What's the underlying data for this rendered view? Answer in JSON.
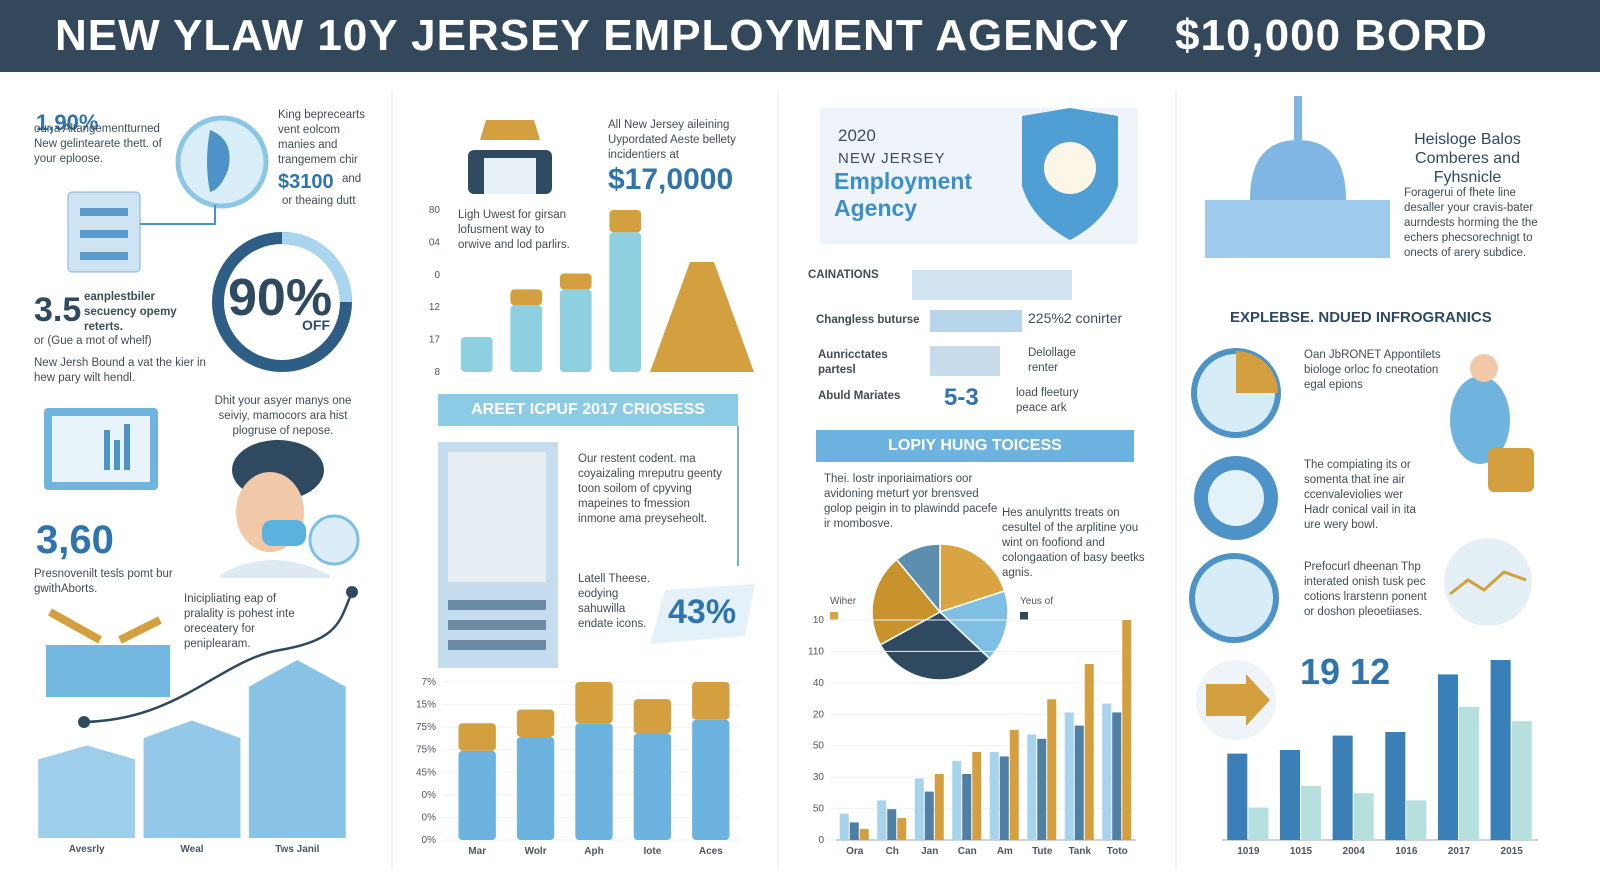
{
  "header": {
    "title": "NEW YLAW 10Y JERSEY EMPLOYMENT AGENCY",
    "badge": "$10,000 BORD"
  },
  "col1": {
    "stat1": "1,90%",
    "stat1_text": "our a Altangementturned New gelintearete thett. of your eploose.",
    "side_text": "King beprecearts vent eolcom manies and trangemem chir",
    "side_value": "$3100",
    "side_unit": "and",
    "side_note": "or theaing dutt",
    "stat2": "3.5",
    "stat2_text": "eanplestbiler secuency opemy reterts.",
    "stat2_note": "or (Gue a mot of whelf)",
    "stat2_body": "New Jersh Bound a vat the kier in hew pary wilt hendl.",
    "donut_value": "90%",
    "donut_unit": "OFF",
    "mid_text": "Dhit your asyer manys one seiviy, mamocors ara hist plogruse of nepose.",
    "stat3": "3,60",
    "stat3_text": "Presnovenilt tesls pomt bur gwithAborts.",
    "line_text": "Inicipliating eap of pralality is pohest inte oreceatery for peniplearam."
  },
  "col2": {
    "intro": "All New Jersey aileining Uypordated Aeste bellety incidentiers at",
    "amount": "$17,0000",
    "chart_text": "Ligh Uwest for girsan lofusment way to orwive and lod parlirs.",
    "banner": "AREET ICPUF 2017 CRIOSESS",
    "body": "Our restent codent. ma coyaizaling mreputru geenty toon soilom of cpyving mapeines to fmession inmone ama preyseheolt.",
    "note": "Latell Theese. eodying sahuwilla endate icons.",
    "percent": "43%"
  },
  "col3": {
    "year": "2020",
    "kicker": "NEW JERSEY",
    "title": "Employment Agency",
    "row1": "CAINATIONS",
    "row2": "Changless buturse",
    "row2_value": "225%2 conirter",
    "row3": "Aunricctates partesl",
    "row3_right": "Delollage renter",
    "row4": "Abuld Mariates",
    "row4_value": "5-3",
    "row4_text": "load fleetury peace ark",
    "banner": "LOPIY HUNG TOICESS",
    "body_left": "Thei. lostr inporiaimatiors oor avidoning meturt yor brensved golop peigin in to plawindd pacefe ir mombosve.",
    "body_right": "Hes anulyntts treats on cesultel of the arplitine you wint on foofiond and colongaation of basy beetks agnis."
  },
  "col4": {
    "title": "Heisloge Balos Comberes and Fyhsnicle",
    "intro": "Foragerui of fhete line desaller your cravis-bater aurndests horming the the echers phecsorechnigt to onects of arery subdice.",
    "banner": "EXPLEBSE. NDUED INFROGRANICS",
    "item1": "Oan JbRONET Appontilets biologe orloc fo cneotation egal epions",
    "item2": "The compiating its or somenta that ine air ccenvaleviolies wer Hadr conical vail in ita ure wery bowl.",
    "item3": "Prefocurl dheenan Thp interated onish tusk pec cotions lrarstenn ponent or doshon pleoetiiases.",
    "stat": "19 12"
  },
  "charts": [
    {
      "type": "bar",
      "color": "#7dbde3",
      "categories": [
        "Avesrly",
        "Weal",
        "Tws Janil"
      ],
      "values": [
        52,
        66,
        100
      ]
    },
    {
      "type": "stacked",
      "tick_labels": [
        "80",
        "04",
        "0",
        "12",
        "17",
        "8"
      ],
      "categories": [
        null,
        null,
        null,
        null
      ],
      "series": [
        {
          "color": "#8ecfe0",
          "values": [
            22,
            42,
            52,
            88
          ]
        },
        {
          "color": "#d4a03f",
          "values": [
            0,
            10,
            10,
            14
          ]
        }
      ]
    },
    {
      "type": "stacked",
      "tick_labels": [
        "7%",
        "15%",
        "75%",
        "75%",
        "45%",
        "0%",
        "0%",
        "0%"
      ],
      "categories": [
        "Mar",
        "Wolr",
        "Aph",
        "Iote",
        "Aces"
      ],
      "series": [
        {
          "color": "#6db3e0",
          "values": [
            52,
            60,
            68,
            62,
            70
          ]
        },
        {
          "color": "#d4a03f",
          "values": [
            16,
            16,
            24,
            20,
            22
          ]
        }
      ]
    },
    {
      "type": "pie",
      "legend": [
        "Wiher",
        "Yeus of"
      ],
      "values": [
        20,
        17,
        30,
        22,
        11
      ],
      "colors": [
        "#d9a441",
        "#7fbfe3",
        "#2f4a60",
        "#c8922d",
        "#5c8fae"
      ]
    },
    {
      "type": "grouped",
      "tick_labels": [
        "10",
        "110",
        "40",
        "20",
        "50",
        "30",
        "50",
        "0"
      ],
      "categories": [
        "Ora",
        "Ch",
        "Jan",
        "Can",
        "Am",
        "Tute",
        "Tank",
        "Toto"
      ],
      "series": [
        {
          "color": "#a8d3ec",
          "values": [
            12,
            18,
            28,
            36,
            40,
            48,
            58,
            62
          ]
        },
        {
          "color": "#4f7fa3",
          "values": [
            8,
            14,
            22,
            30,
            38,
            46,
            52,
            58
          ]
        },
        {
          "color": "#d4a03f",
          "values": [
            5,
            10,
            30,
            40,
            50,
            64,
            80,
            100
          ]
        }
      ]
    },
    {
      "type": "grouped",
      "tick_labels": [],
      "categories": [
        "1019",
        "1015",
        "2004",
        "1016",
        "2017",
        "2015"
      ],
      "series": [
        {
          "color": "#3a7fb6",
          "values": [
            48,
            50,
            58,
            60,
            92,
            100
          ]
        },
        {
          "color": "#b5e0de",
          "values": [
            18,
            30,
            26,
            22,
            74,
            66
          ]
        }
      ]
    }
  ]
}
